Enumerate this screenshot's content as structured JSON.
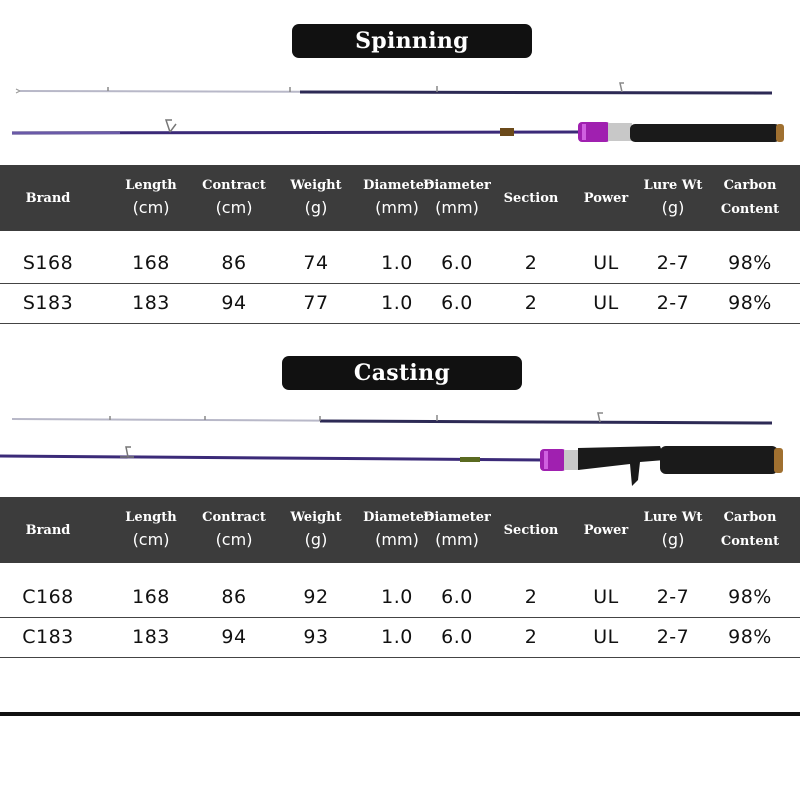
{
  "spinning": {
    "title": "Spinning",
    "headers": [
      {
        "label": "Brand",
        "unit": ""
      },
      {
        "label": "Length",
        "unit": "(cm)"
      },
      {
        "label": "Contract",
        "unit": "(cm)"
      },
      {
        "label": "Weight",
        "unit": "(g)"
      },
      {
        "label": "Diameter",
        "unit": "(mm)"
      },
      {
        "label": "Diameter",
        "unit": "(mm)"
      },
      {
        "label": "Section",
        "unit": ""
      },
      {
        "label": "Power",
        "unit": ""
      },
      {
        "label": "Lure Wt",
        "unit": "(g)"
      },
      {
        "label": "Carbon",
        "unit": "Content"
      }
    ],
    "rows": [
      [
        "S168",
        "168",
        "86",
        "74",
        "1.0",
        "6.0",
        "2",
        "UL",
        "2-7",
        "98%"
      ],
      [
        "S183",
        "183",
        "94",
        "77",
        "1.0",
        "6.0",
        "2",
        "UL",
        "2-7",
        "98%"
      ]
    ]
  },
  "casting": {
    "title": "Casting",
    "headers": [
      {
        "label": "Brand",
        "unit": ""
      },
      {
        "label": "Length",
        "unit": "(cm)"
      },
      {
        "label": "Contract",
        "unit": "(cm)"
      },
      {
        "label": "Weight",
        "unit": "(g)"
      },
      {
        "label": "Diameter",
        "unit": "(mm)"
      },
      {
        "label": "Diameter",
        "unit": "(mm)"
      },
      {
        "label": "Section",
        "unit": ""
      },
      {
        "label": "Power",
        "unit": ""
      },
      {
        "label": "Lure Wt",
        "unit": "(g)"
      },
      {
        "label": "Carbon",
        "unit": "Content"
      }
    ],
    "rows": [
      [
        "C168",
        "168",
        "86",
        "92",
        "1.0",
        "6.0",
        "2",
        "UL",
        "2-7",
        "98%"
      ],
      [
        "C183",
        "183",
        "94",
        "93",
        "1.0",
        "6.0",
        "2",
        "UL",
        "2-7",
        "98%"
      ]
    ]
  },
  "colors": {
    "header_bg": "#3c3c3c",
    "badge_bg": "#111111",
    "blank_purple": "#3b2a78",
    "reel_seat": "#a020b0"
  },
  "icons": [
    "spinning-rod-illustration",
    "casting-rod-illustration"
  ]
}
